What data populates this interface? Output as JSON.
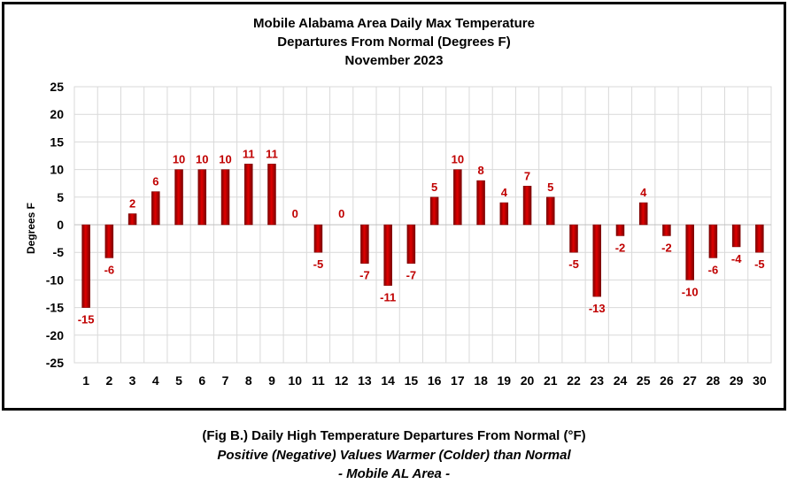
{
  "chart_data": {
    "type": "bar",
    "title_lines": [
      "Mobile Alabama Area Daily Max Temperature",
      "Departures From Normal (Degrees F)",
      "November 2023"
    ],
    "xlabel": "",
    "ylabel": "Degrees F",
    "ylim": [
      -25,
      25
    ],
    "y_ticks": [
      25,
      20,
      15,
      10,
      5,
      0,
      -5,
      -10,
      -15,
      -20,
      -25
    ],
    "grid": true,
    "legend": "none",
    "categories": [
      "1",
      "2",
      "3",
      "4",
      "5",
      "6",
      "7",
      "8",
      "9",
      "10",
      "11",
      "12",
      "13",
      "14",
      "15",
      "16",
      "17",
      "18",
      "19",
      "20",
      "21",
      "22",
      "23",
      "24",
      "25",
      "26",
      "27",
      "28",
      "29",
      "30"
    ],
    "values": [
      -15,
      -6,
      2,
      6,
      10,
      10,
      10,
      11,
      11,
      0,
      -5,
      0,
      -7,
      -11,
      -7,
      5,
      10,
      8,
      4,
      7,
      5,
      -5,
      -13,
      -2,
      4,
      -2,
      -10,
      -6,
      -4,
      -5
    ],
    "colors": {
      "bar": "#cc0000",
      "bar_dark": "#7a0000",
      "label": "#c00000",
      "grid": "#d9d9d9"
    }
  },
  "caption": {
    "line1": "(Fig B.) Daily High Temperature Departures From Normal (°F)",
    "line2": "Positive (Negative) Values Warmer (Colder) than Normal",
    "line3": "- Mobile AL Area -"
  }
}
